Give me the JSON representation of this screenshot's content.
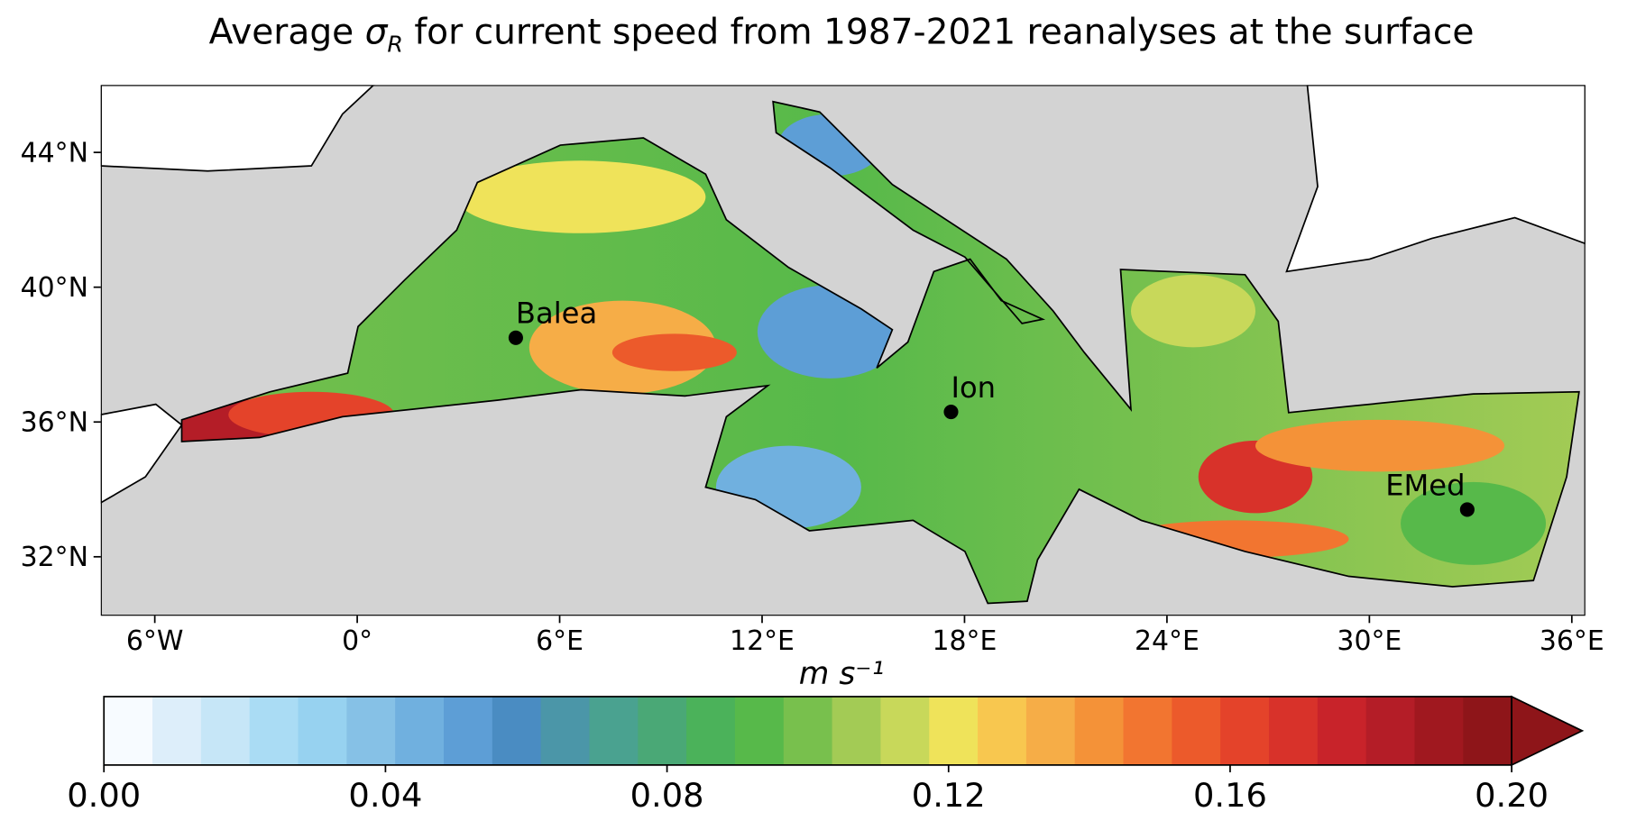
{
  "map": {
    "title_parts": [
      "Average ",
      "σ",
      "R",
      " for current speed from 1987-2021 reanalyses at the surface"
    ],
    "xlim": [
      -7.6,
      36.4
    ],
    "ylim": [
      30.25,
      46
    ],
    "xticks": [
      {
        "value": -6,
        "label": "6°W"
      },
      {
        "value": 0,
        "label": "0°"
      },
      {
        "value": 6,
        "label": "6°E"
      },
      {
        "value": 12,
        "label": "12°E"
      },
      {
        "value": 18,
        "label": "18°E"
      },
      {
        "value": 24,
        "label": "24°E"
      },
      {
        "value": 30,
        "label": "30°E"
      },
      {
        "value": 36,
        "label": "36°E"
      }
    ],
    "yticks": [
      {
        "value": 32,
        "label": "32°N"
      },
      {
        "value": 36,
        "label": "36°N"
      },
      {
        "value": 40,
        "label": "40°N"
      },
      {
        "value": 44,
        "label": "44°N"
      }
    ],
    "stations": [
      {
        "name": "Balea",
        "lon": 4.7,
        "lat": 38.5
      },
      {
        "name": "Ion",
        "lon": 17.6,
        "lat": 36.3
      },
      {
        "name": "EMed",
        "lon": 32.9,
        "lat": 33.4
      }
    ],
    "land_color": "#d3d3d3",
    "colorbar": {
      "units": "m s⁻¹",
      "clim": [
        0,
        0.2
      ],
      "ticks": [
        {
          "value": 0,
          "label": "0.00"
        },
        {
          "value": 0.04,
          "label": "0.04"
        },
        {
          "value": 0.08,
          "label": "0.08"
        },
        {
          "value": 0.12,
          "label": "0.12"
        },
        {
          "value": 0.16,
          "label": "0.16"
        },
        {
          "value": 0.2,
          "label": "0.20"
        }
      ],
      "extend": "max",
      "colors": [
        "#f7fbff",
        "#ddeefa",
        "#c6e6f7",
        "#aadcf4",
        "#97d2f0",
        "#86c1e6",
        "#70b0df",
        "#5d9ed6",
        "#4a8cc2",
        "#4b96a8",
        "#4aa290",
        "#4aa876",
        "#4bb25a",
        "#57b94a",
        "#78c04d",
        "#a3cb55",
        "#c8d85a",
        "#efe35a",
        "#f8c74f",
        "#f6ad47",
        "#f49238",
        "#f27530",
        "#ec5a2b",
        "#e4432a",
        "#d8322a",
        "#c8232a",
        "#b41d27",
        "#a0181f",
        "#8e1519"
      ]
    }
  }
}
